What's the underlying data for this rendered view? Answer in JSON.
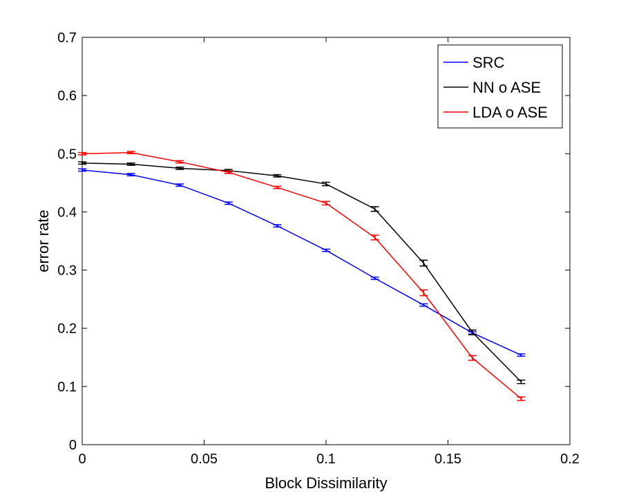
{
  "chart_data": {
    "type": "line",
    "title": "",
    "xlabel": "Block Dissimilarity",
    "ylabel": "error rate",
    "xlim": [
      0,
      0.2
    ],
    "ylim": [
      0,
      0.7
    ],
    "xticks": [
      0,
      0.05,
      0.1,
      0.15,
      0.2
    ],
    "xtick_labels": [
      "0",
      "0.05",
      "0.1",
      "0.15",
      "0.2"
    ],
    "yticks": [
      0,
      0.1,
      0.2,
      0.3,
      0.4,
      0.5,
      0.6,
      0.7
    ],
    "ytick_labels": [
      "0",
      "0.1",
      "0.2",
      "0.3",
      "0.4",
      "0.5",
      "0.6",
      "0.7"
    ],
    "grid": false,
    "legend_position": "top-right",
    "x": [
      0,
      0.02,
      0.04,
      0.06,
      0.08,
      0.1,
      0.12,
      0.14,
      0.16,
      0.18
    ],
    "series": [
      {
        "name": "SRC",
        "color": "#0000ff",
        "values": [
          0.472,
          0.464,
          0.446,
          0.415,
          0.376,
          0.334,
          0.286,
          0.24,
          0.192,
          0.154
        ],
        "error": [
          0.002,
          0.002,
          0.002,
          0.002,
          0.002,
          0.002,
          0.002,
          0.002,
          0.002,
          0.002
        ]
      },
      {
        "name": "NN o ASE",
        "color": "#000000",
        "values": [
          0.484,
          0.482,
          0.475,
          0.471,
          0.462,
          0.448,
          0.405,
          0.312,
          0.193,
          0.108
        ],
        "error": [
          0.002,
          0.002,
          0.002,
          0.002,
          0.002,
          0.003,
          0.004,
          0.005,
          0.004,
          0.003
        ]
      },
      {
        "name": "LDA o ASE",
        "color": "#ff0000",
        "values": [
          0.5,
          0.502,
          0.486,
          0.468,
          0.442,
          0.415,
          0.356,
          0.261,
          0.149,
          0.079
        ],
        "error": [
          0.002,
          0.002,
          0.002,
          0.002,
          0.002,
          0.003,
          0.004,
          0.005,
          0.004,
          0.003
        ]
      }
    ]
  }
}
